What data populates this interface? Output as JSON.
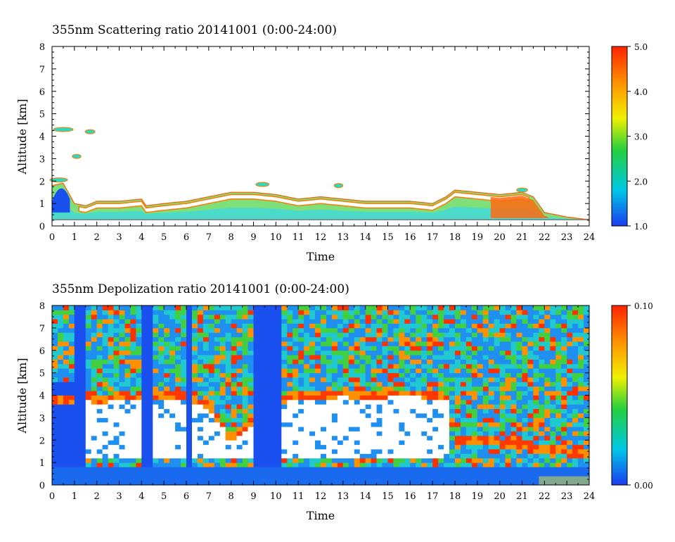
{
  "chart_data": [
    {
      "type": "heatmap",
      "title": "355nm Scattering ratio  20141001 (0:00-24:00)",
      "xlabel": "Time",
      "ylabel": "Altitude [km]",
      "xlim": [
        0,
        24
      ],
      "ylim": [
        0,
        8
      ],
      "x_ticks": [
        "0",
        "1",
        "2",
        "3",
        "4",
        "5",
        "6",
        "7",
        "8",
        "9",
        "10",
        "11",
        "12",
        "13",
        "14",
        "15",
        "16",
        "17",
        "18",
        "19",
        "20",
        "21",
        "22",
        "23",
        "24"
      ],
      "y_ticks": [
        "0",
        "1",
        "2",
        "3",
        "4",
        "5",
        "6",
        "7",
        "8"
      ],
      "colorbar": {
        "min": 1.0,
        "max": 5.0,
        "tick_labels": [
          "5.0",
          "4.0",
          "3.0",
          "2.0",
          "1.0"
        ],
        "colors": [
          "#1a3cf0",
          "#00c8e6",
          "#22d040",
          "#f0f000",
          "#ff9000",
          "#ff2200"
        ]
      },
      "above_range_color": "#ffffff",
      "description_layers": [
        {
          "label": "aerosol boundary layer top (km) vs hour",
          "x": [
            0,
            0.5,
            1,
            1.5,
            2,
            3,
            4,
            4.2,
            5,
            6,
            7,
            8,
            9,
            10,
            11,
            12,
            13,
            14,
            15,
            16,
            17,
            17.6,
            18,
            19,
            20,
            21,
            21.5,
            22,
            23,
            23.8
          ],
          "y": [
            1.8,
            1.9,
            1.0,
            0.9,
            1.1,
            1.1,
            1.2,
            0.9,
            1.0,
            1.1,
            1.3,
            1.5,
            1.5,
            1.4,
            1.2,
            1.3,
            1.2,
            1.1,
            1.1,
            1.1,
            1.0,
            1.3,
            1.6,
            1.5,
            1.4,
            1.5,
            1.3,
            0.6,
            0.4,
            0.3
          ]
        }
      ]
    },
    {
      "type": "heatmap",
      "title": "355nm Depolization ratio  20141001 (0:00-24:00)",
      "xlabel": "Time",
      "ylabel": "Altitude [km]",
      "xlim": [
        0,
        24
      ],
      "ylim": [
        0,
        8
      ],
      "x_ticks": [
        "0",
        "1",
        "2",
        "3",
        "4",
        "5",
        "6",
        "7",
        "8",
        "9",
        "10",
        "11",
        "12",
        "13",
        "14",
        "15",
        "16",
        "17",
        "18",
        "19",
        "20",
        "21",
        "22",
        "23",
        "24"
      ],
      "y_ticks": [
        "0",
        "1",
        "2",
        "3",
        "4",
        "5",
        "6",
        "7",
        "8"
      ],
      "colorbar": {
        "min": 0.0,
        "max": 0.1,
        "tick_labels": [
          "0.10",
          "0.00"
        ],
        "colors": [
          "#1a3cf0",
          "#00c8e6",
          "#22d040",
          "#f0f000",
          "#ff9000",
          "#ff2200"
        ]
      },
      "above_range_color": "#ffffff",
      "description_layers": [
        {
          "label": "high-depolarization (white) layer top (km) vs hour",
          "x": [
            1,
            1.5,
            2,
            3,
            4,
            4.5,
            5,
            6,
            6.5,
            7,
            8,
            10.5,
            11,
            12,
            13,
            14,
            15,
            16,
            17,
            17.7,
            18,
            19,
            20,
            21,
            22,
            23
          ],
          "y": [
            3.8,
            3.9,
            3.6,
            3.9,
            3.7,
            3.8,
            3.9,
            3.9,
            3.6,
            3.4,
            2.0,
            3.8,
            3.9,
            3.8,
            4.0,
            3.8,
            3.9,
            4.0,
            3.8,
            3.7,
            2.0,
            1.9,
            1.8,
            1.7,
            1.5,
            1.4
          ]
        }
      ]
    }
  ]
}
